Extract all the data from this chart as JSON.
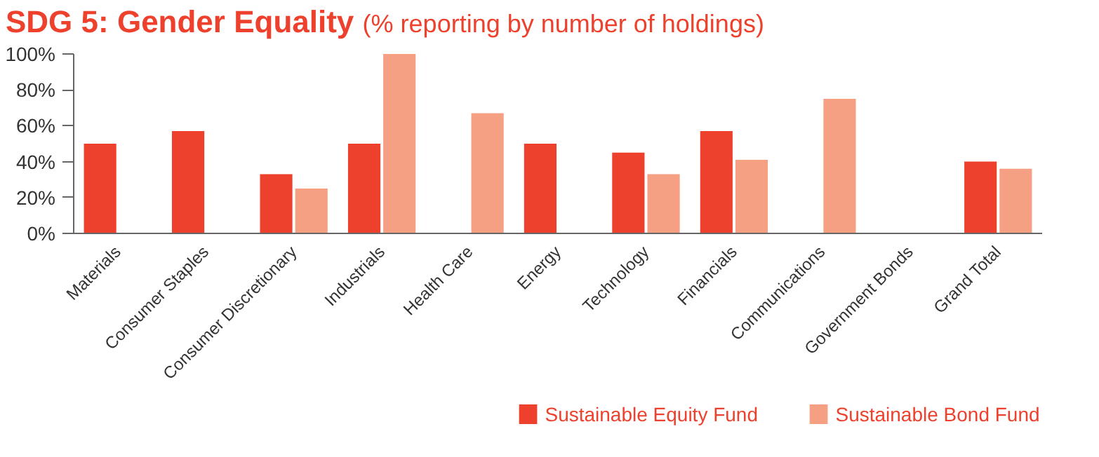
{
  "chart_data": {
    "type": "bar",
    "title": "SDG 5: Gender Equality",
    "subtitle": "(% reporting by number of holdings)",
    "categories": [
      "Materials",
      "Consumer Staples",
      "Consumer Discretionary",
      "Industrials",
      "Health Care",
      "Energy",
      "Technology",
      "Financials",
      "Communications",
      "Government Bonds",
      "Grand Total"
    ],
    "series": [
      {
        "name": "Sustainable Equity Fund",
        "color": "#ee412d",
        "values": [
          50,
          57,
          33,
          50,
          null,
          50,
          45,
          57,
          null,
          null,
          40
        ]
      },
      {
        "name": "Sustainable Bond Fund",
        "color": "#f5a083",
        "values": [
          null,
          null,
          25,
          100,
          67,
          null,
          33,
          41,
          75,
          null,
          36
        ]
      }
    ],
    "ylim": [
      0,
      100
    ],
    "yticks": [
      {
        "value": 0,
        "label": "0%"
      },
      {
        "value": 20,
        "label": "20%"
      },
      {
        "value": 40,
        "label": "40%"
      },
      {
        "value": 60,
        "label": "60%"
      },
      {
        "value": 80,
        "label": "80%"
      },
      {
        "value": 100,
        "label": "100%"
      }
    ],
    "grid": false,
    "legend": "bottom right"
  }
}
